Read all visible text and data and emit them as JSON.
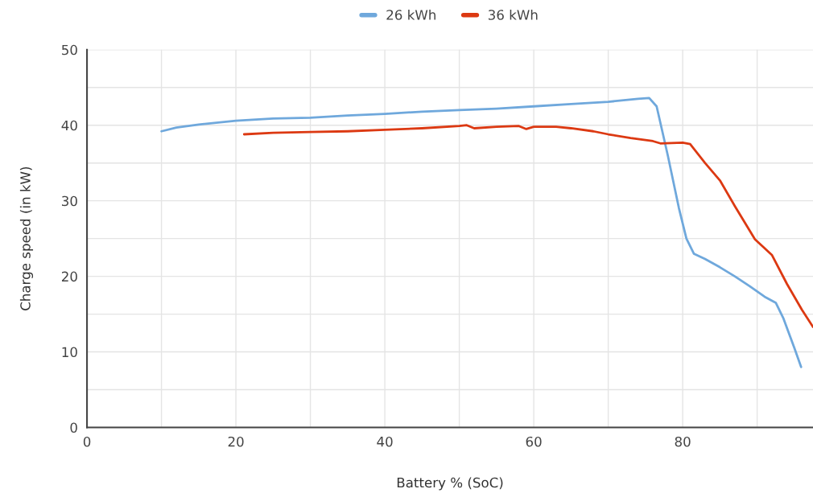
{
  "chart_data": {
    "type": "line",
    "xlabel": "Battery % (SoC)",
    "ylabel": "Charge speed (in kW)",
    "xlim": [
      0,
      97.5
    ],
    "ylim": [
      0,
      50
    ],
    "xticks": [
      0,
      {
        "value": 10,
        "label": null
      },
      20,
      {
        "value": 30,
        "label": null
      },
      40,
      {
        "value": 50,
        "label": null
      },
      60,
      {
        "value": 70,
        "label": null
      },
      80,
      {
        "value": 90,
        "label": null
      }
    ],
    "yticks": [
      0,
      {
        "value": 5,
        "label": null
      },
      10,
      {
        "value": 15,
        "label": null
      },
      20,
      {
        "value": 25,
        "label": null
      },
      30,
      {
        "value": 35,
        "label": null
      },
      40,
      {
        "value": 45,
        "label": null
      },
      50
    ],
    "grid": true,
    "legend": "top",
    "marker": "none",
    "line_style": "solid",
    "series": [
      {
        "name": "26 kWh",
        "color": "#6fa8dc",
        "x": [
          10,
          12,
          15,
          20,
          25,
          30,
          35,
          40,
          45,
          50,
          55,
          60,
          65,
          70,
          74,
          75.5,
          76.5,
          78,
          79.5,
          80.5,
          81.5,
          83,
          85,
          87,
          89,
          91,
          92.5,
          93.5,
          95,
          95.9
        ],
        "values": [
          39.2,
          39.7,
          40.1,
          40.6,
          40.9,
          41.0,
          41.3,
          41.5,
          41.8,
          42.0,
          42.2,
          42.5,
          42.8,
          43.1,
          43.5,
          43.6,
          42.5,
          36,
          29,
          25,
          23,
          22.3,
          21.2,
          20,
          18.7,
          17.3,
          16.5,
          14.5,
          10.5,
          8
        ]
      },
      {
        "name": "36 kWh",
        "color": "#dc3912",
        "x": [
          21.1,
          25,
          30,
          35,
          40,
          45,
          50,
          51,
          52,
          55,
          58,
          59,
          60,
          63,
          65,
          68,
          70,
          73,
          76,
          77,
          80,
          81,
          83,
          85,
          87,
          89.7,
          92,
          94,
          96,
          97.5
        ],
        "values": [
          38.8,
          39.0,
          39.1,
          39.2,
          39.4,
          39.6,
          39.9,
          40,
          39.6,
          39.8,
          39.9,
          39.5,
          39.8,
          39.8,
          39.6,
          39.2,
          38.8,
          38.3,
          37.9,
          37.6,
          37.7,
          37.5,
          35,
          32.7,
          29.3,
          24.9,
          22.8,
          19,
          15.6,
          13.3
        ]
      }
    ]
  }
}
